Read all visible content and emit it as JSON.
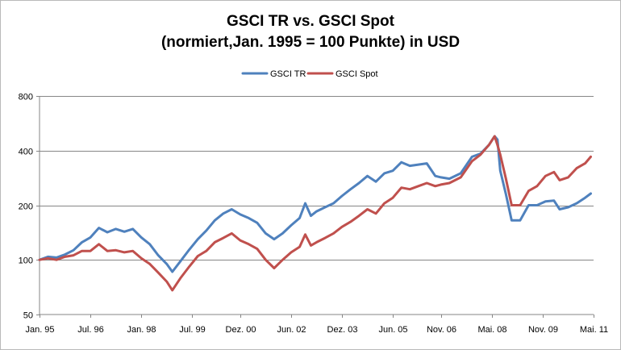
{
  "chart_data": {
    "type": "line",
    "title_lines": [
      "GSCI TR vs. GSCI Spot",
      "(normiert,Jan. 1995 = 100 Punkte) in USD"
    ],
    "legend_position": "top",
    "y_scale": "log",
    "ylim": [
      50,
      800
    ],
    "y_ticks": [
      {
        "value": 50,
        "label": "50"
      },
      {
        "value": 100,
        "label": "100"
      },
      {
        "value": 200,
        "label": "200"
      },
      {
        "value": 400,
        "label": "400"
      },
      {
        "value": 800,
        "label": "800"
      }
    ],
    "xlim": [
      "1995-01",
      "2011-05"
    ],
    "x_ticks": [
      {
        "date": "1995-01",
        "label": "Jan. 95"
      },
      {
        "date": "1996-07",
        "label": "Jul. 96"
      },
      {
        "date": "1998-01",
        "label": "Jan. 98"
      },
      {
        "date": "1999-07",
        "label": "Jul. 99"
      },
      {
        "date": "2000-12",
        "label": "Dez. 00"
      },
      {
        "date": "2002-06",
        "label": "Jun. 02"
      },
      {
        "date": "2003-12",
        "label": "Dez. 03"
      },
      {
        "date": "2005-06",
        "label": "Jun. 05"
      },
      {
        "date": "2006-11",
        "label": "Nov. 06"
      },
      {
        "date": "2008-05",
        "label": "Mai. 08"
      },
      {
        "date": "2009-11",
        "label": "Nov. 09"
      },
      {
        "date": "2011-05",
        "label": "Mai. 11"
      }
    ],
    "grid": "horizontal",
    "series": [
      {
        "name": "GSCI TR",
        "color": "#4f81bd",
        "points": [
          [
            "1995-01",
            100
          ],
          [
            "1995-04",
            104
          ],
          [
            "1995-07",
            103
          ],
          [
            "1995-10",
            107
          ],
          [
            "1996-01",
            113
          ],
          [
            "1996-04",
            125
          ],
          [
            "1996-07",
            133
          ],
          [
            "1996-10",
            150
          ],
          [
            "1997-01",
            142
          ],
          [
            "1997-04",
            148
          ],
          [
            "1997-07",
            143
          ],
          [
            "1997-10",
            148
          ],
          [
            "1998-01",
            133
          ],
          [
            "1998-04",
            122
          ],
          [
            "1998-07",
            106
          ],
          [
            "1998-10",
            95
          ],
          [
            "1998-12",
            86
          ],
          [
            "1999-03",
            99
          ],
          [
            "1999-06",
            114
          ],
          [
            "1999-09",
            130
          ],
          [
            "1999-12",
            145
          ],
          [
            "2000-03",
            165
          ],
          [
            "2000-06",
            180
          ],
          [
            "2000-09",
            190
          ],
          [
            "2000-12",
            178
          ],
          [
            "2001-03",
            170
          ],
          [
            "2001-06",
            160
          ],
          [
            "2001-09",
            140
          ],
          [
            "2001-12",
            130
          ],
          [
            "2002-03",
            140
          ],
          [
            "2002-06",
            155
          ],
          [
            "2002-09",
            170
          ],
          [
            "2002-11",
            205
          ],
          [
            "2003-01",
            175
          ],
          [
            "2003-03",
            185
          ],
          [
            "2003-06",
            195
          ],
          [
            "2003-09",
            205
          ],
          [
            "2003-12",
            225
          ],
          [
            "2004-03",
            245
          ],
          [
            "2004-06",
            265
          ],
          [
            "2004-09",
            290
          ],
          [
            "2004-12",
            270
          ],
          [
            "2005-03",
            300
          ],
          [
            "2005-06",
            310
          ],
          [
            "2005-09",
            345
          ],
          [
            "2005-12",
            330
          ],
          [
            "2006-03",
            335
          ],
          [
            "2006-06",
            340
          ],
          [
            "2006-09",
            290
          ],
          [
            "2006-11",
            285
          ],
          [
            "2007-02",
            280
          ],
          [
            "2007-06",
            300
          ],
          [
            "2007-10",
            370
          ],
          [
            "2008-01",
            385
          ],
          [
            "2008-04",
            430
          ],
          [
            "2008-06",
            480
          ],
          [
            "2008-07",
            460
          ],
          [
            "2008-08",
            310
          ],
          [
            "2008-10",
            230
          ],
          [
            "2008-12",
            165
          ],
          [
            "2009-03",
            165
          ],
          [
            "2009-06",
            200
          ],
          [
            "2009-09",
            200
          ],
          [
            "2009-12",
            210
          ],
          [
            "2010-03",
            212
          ],
          [
            "2010-05",
            190
          ],
          [
            "2010-08",
            195
          ],
          [
            "2010-11",
            205
          ],
          [
            "2011-02",
            220
          ],
          [
            "2011-04",
            232
          ]
        ]
      },
      {
        "name": "GSCI Spot",
        "color": "#c0504d",
        "points": [
          [
            "1995-01",
            100
          ],
          [
            "1995-04",
            102
          ],
          [
            "1995-07",
            100
          ],
          [
            "1995-10",
            104
          ],
          [
            "1996-01",
            106
          ],
          [
            "1996-04",
            112
          ],
          [
            "1996-07",
            112
          ],
          [
            "1996-10",
            122
          ],
          [
            "1997-01",
            112
          ],
          [
            "1997-04",
            113
          ],
          [
            "1997-07",
            110
          ],
          [
            "1997-10",
            112
          ],
          [
            "1998-01",
            102
          ],
          [
            "1998-04",
            95
          ],
          [
            "1998-07",
            85
          ],
          [
            "1998-10",
            76
          ],
          [
            "1998-12",
            68
          ],
          [
            "1999-03",
            80
          ],
          [
            "1999-06",
            92
          ],
          [
            "1999-09",
            105
          ],
          [
            "1999-12",
            112
          ],
          [
            "2000-03",
            125
          ],
          [
            "2000-06",
            132
          ],
          [
            "2000-09",
            140
          ],
          [
            "2000-12",
            128
          ],
          [
            "2001-03",
            122
          ],
          [
            "2001-06",
            115
          ],
          [
            "2001-09",
            100
          ],
          [
            "2001-12",
            90
          ],
          [
            "2002-03",
            100
          ],
          [
            "2002-06",
            110
          ],
          [
            "2002-09",
            118
          ],
          [
            "2002-11",
            138
          ],
          [
            "2003-01",
            120
          ],
          [
            "2003-03",
            125
          ],
          [
            "2003-06",
            132
          ],
          [
            "2003-09",
            140
          ],
          [
            "2003-12",
            152
          ],
          [
            "2004-03",
            162
          ],
          [
            "2004-06",
            175
          ],
          [
            "2004-09",
            190
          ],
          [
            "2004-12",
            180
          ],
          [
            "2005-03",
            205
          ],
          [
            "2005-06",
            220
          ],
          [
            "2005-09",
            250
          ],
          [
            "2005-12",
            245
          ],
          [
            "2006-03",
            255
          ],
          [
            "2006-06",
            265
          ],
          [
            "2006-09",
            255
          ],
          [
            "2006-11",
            260
          ],
          [
            "2007-02",
            265
          ],
          [
            "2007-06",
            285
          ],
          [
            "2007-10",
            350
          ],
          [
            "2008-01",
            380
          ],
          [
            "2008-04",
            430
          ],
          [
            "2008-06",
            480
          ],
          [
            "2008-07",
            430
          ],
          [
            "2008-08",
            380
          ],
          [
            "2008-10",
            280
          ],
          [
            "2008-12",
            200
          ],
          [
            "2009-03",
            200
          ],
          [
            "2009-06",
            240
          ],
          [
            "2009-09",
            255
          ],
          [
            "2009-12",
            290
          ],
          [
            "2010-03",
            305
          ],
          [
            "2010-05",
            275
          ],
          [
            "2010-08",
            285
          ],
          [
            "2010-11",
            320
          ],
          [
            "2011-02",
            340
          ],
          [
            "2011-04",
            370
          ]
        ]
      }
    ]
  }
}
